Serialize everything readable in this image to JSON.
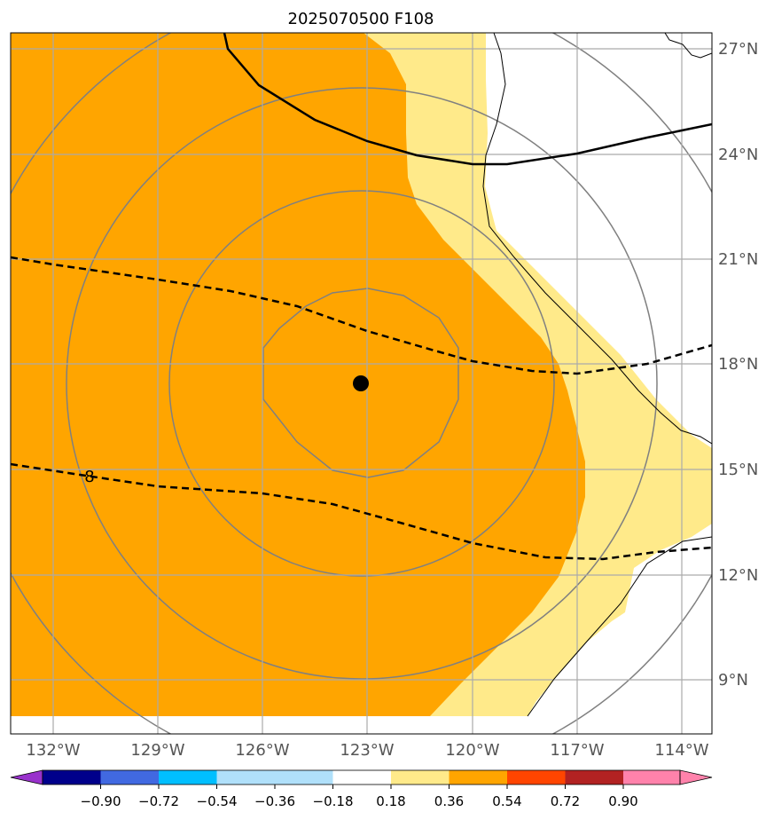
{
  "title": "2025070500 F108",
  "map": {
    "lon_labels": [
      "132°W",
      "129°W",
      "126°W",
      "123°W",
      "120°W",
      "117°W",
      "114°W"
    ],
    "lat_labels": [
      "27°N",
      "24°N",
      "21°N",
      "18°N",
      "15°N",
      "12°N",
      "9°N"
    ],
    "storm_center": {
      "lon": -123.15,
      "lat": 17.5
    },
    "contour_label": "8",
    "fill_colors": {
      "orange": "#ffa500",
      "light_yellow": "#ffea8a"
    }
  },
  "colorbar": {
    "tick_labels": [
      "−0.90",
      "−0.72",
      "−0.54",
      "−0.36",
      "−0.18",
      "0.18",
      "0.36",
      "0.54",
      "0.72",
      "0.90"
    ],
    "colors": [
      "#9932cc",
      "#00008b",
      "#4169e1",
      "#00bfff",
      "#b0e0fa",
      "#ffffff",
      "#ffea8a",
      "#ffa500",
      "#ff4500",
      "#b22222",
      "#ff82ab"
    ]
  }
}
